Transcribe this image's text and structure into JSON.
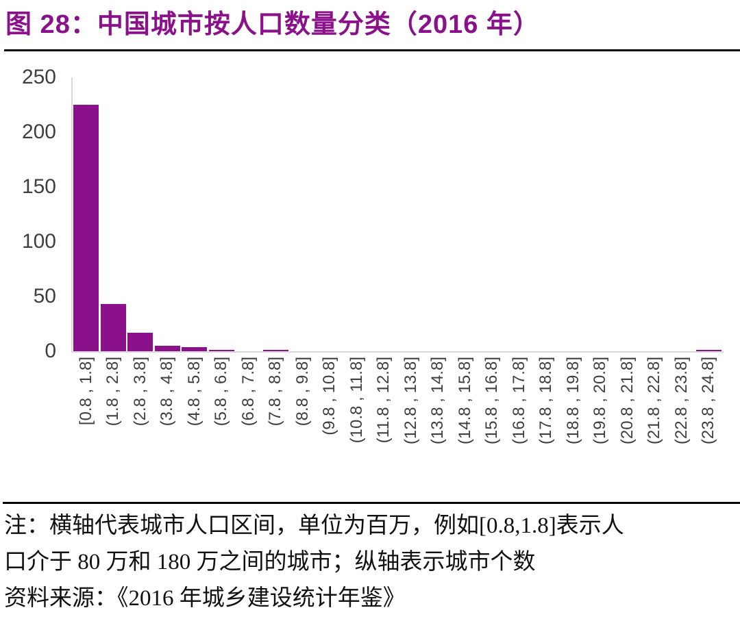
{
  "title": "图 28：中国城市按人口数量分类（2016 年）",
  "notes": {
    "line1": "注：横轴代表城市人口区间，单位为百万，例如[0.8,1.8]表示人",
    "line2": "口介于 80 万和 180 万之间的城市；纵轴表示城市个数",
    "line3": "资料来源：《2016 年城乡建设统计年鉴》"
  },
  "colors": {
    "bar": "#8B118B",
    "title_text": "#8B118B",
    "axis_line": "#D9D9D9",
    "tick_text": "#3F3F3F",
    "rule": "#000000"
  },
  "chart_data": {
    "type": "bar",
    "title": "图 28：中国城市按人口数量分类（2016 年）",
    "categories": [
      "[0.8 , 1.8]",
      "(1.8 , 2.8]",
      "(2.8 , 3.8]",
      "(3.8 , 4.8]",
      "(4.8 , 5.8]",
      "(5.8 , 6.8]",
      "(6.8 , 7.8]",
      "(7.8 , 8.8]",
      "(8.8 , 9.8]",
      "(9.8 , 10.8]",
      "(10.8 , 11.8]",
      "(11.8 , 12.8]",
      "(12.8 , 13.8]",
      "(13.8 , 14.8]",
      "(14.8 , 15.8]",
      "(15.8 , 16.8]",
      "(16.8 , 17.8]",
      "(17.8 , 18.8]",
      "(18.8 , 19.8]",
      "(19.8 , 20.8]",
      "(20.8 , 21.8]",
      "(21.8 , 22.8]",
      "(22.8 , 23.8]",
      "(23.8 , 24.8]"
    ],
    "values": [
      225,
      43,
      17,
      5,
      4,
      1,
      0,
      1,
      0,
      0,
      0,
      0,
      0,
      0,
      0,
      0,
      0,
      0,
      0,
      0,
      0,
      0,
      0,
      1
    ],
    "xlabel": "",
    "ylabel": "",
    "ylim": [
      0,
      250
    ],
    "yticks": [
      0,
      50,
      100,
      150,
      200,
      250
    ],
    "grid": false,
    "legend": "none"
  }
}
